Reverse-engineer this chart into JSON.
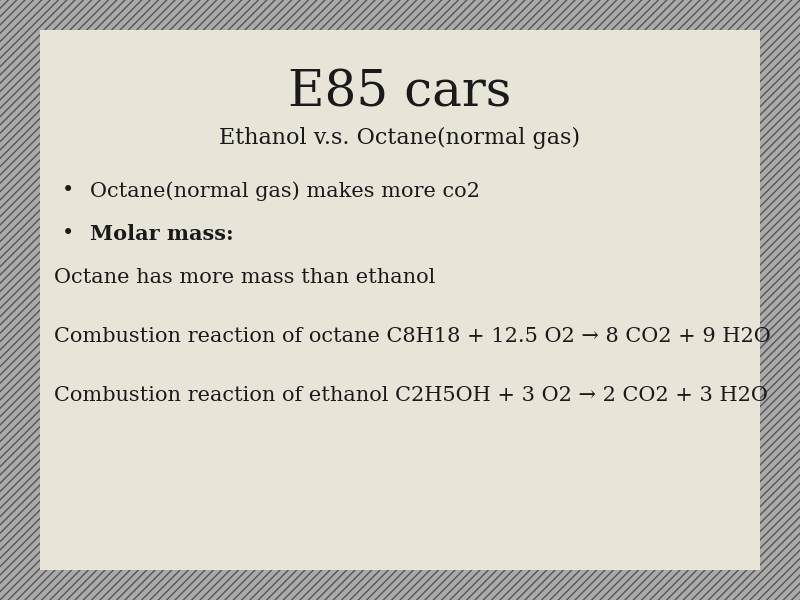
{
  "title": "E85 cars",
  "subtitle": "Ethanol v.s. Octane(normal gas)",
  "bullet1": "Octane(normal gas) makes more co2",
  "bullet2_bold": "Molar mass:",
  "line3": "Octane has more mass than ethanol",
  "line4": "Combustion reaction of octane C8H18 + 12.5 O2 → 8 CO2 + 9 H2O",
  "line5": "Combustion reaction of ethanol C2H5OH + 3 O2 → 2 CO2 + 3 H2O",
  "bg_color": "#e8e4d8",
  "hatch_color": "#aaaaaa",
  "text_color": "#1a1a1a",
  "title_fontsize": 36,
  "subtitle_fontsize": 16,
  "body_fontsize": 15
}
